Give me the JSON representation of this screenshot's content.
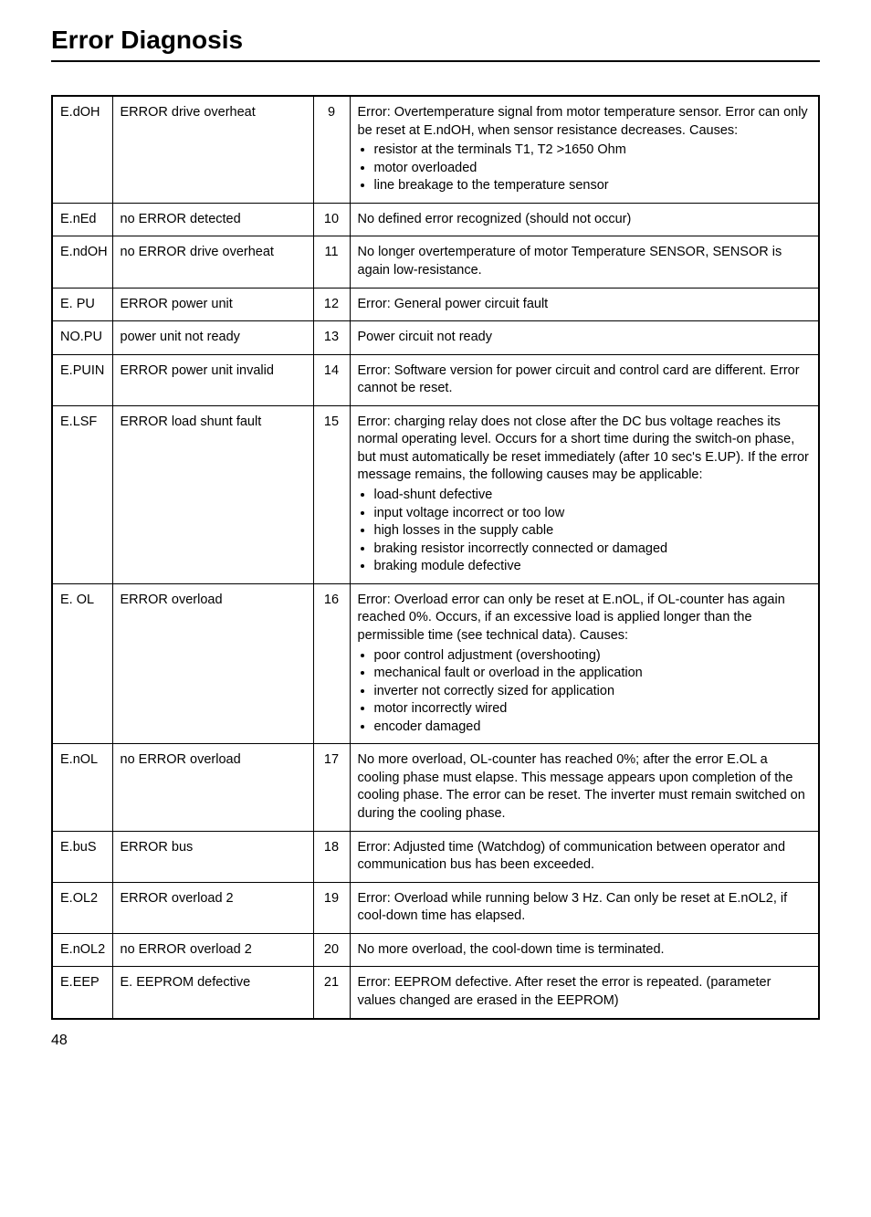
{
  "page": {
    "title": "Error Diagnosis",
    "number": "48"
  },
  "table": {
    "rows": [
      {
        "code": "E.dOH",
        "name": "ERROR drive overheat",
        "num": "9",
        "desc_intro": "Error: Overtemperature signal from motor temperature sensor. Error can only be reset at E.ndOH, when sensor resistance decreases. Causes:",
        "bullets": [
          "resistor at the terminals T1, T2 >1650 Ohm",
          " motor overloaded",
          "line breakage to the temperature sensor"
        ]
      },
      {
        "code": "E.nEd",
        "name": "no ERROR detected",
        "num": "10",
        "desc": "No defined error recognized (should not occur)"
      },
      {
        "code": "E.ndOH",
        "name": "no ERROR drive overheat",
        "num": "11",
        "desc": "No longer overtemperature of motor Temperature SENSOR, SENSOR is again low-resistance."
      },
      {
        "code": "E. PU",
        "name": "ERROR power unit",
        "num": "12",
        "desc": "Error: General power circuit fault"
      },
      {
        "code": "NO.PU",
        "name": "power unit not ready",
        "num": "13",
        "desc": "Power circuit not ready"
      },
      {
        "code": "E.PUIN",
        "name": "ERROR power unit invalid",
        "num": "14",
        "desc": "Error: Software version for power circuit and control card are different. Error cannot be reset."
      },
      {
        "code": "E.LSF",
        "name": "ERROR load shunt fault",
        "num": "15",
        "desc_intro": "Error: charging relay does not close after the DC bus voltage reaches its normal operating level. Occurs for a short time during the switch-on phase, but must automatically be reset immediately (after 10 sec's E.UP). If the error message remains, the following causes may be applicable:",
        "bullets": [
          " load-shunt defective",
          "input voltage incorrect or too low",
          "high losses in the supply cable",
          "braking resistor incorrectly connected or damaged",
          "braking module defective"
        ]
      },
      {
        "code": "E. OL",
        "name": "ERROR overload",
        "num": "16",
        "desc_intro": "Error: Overload error can only be reset at E.nOL, if OL-counter has again reached 0%. Occurs, if an excessive load is applied longer than the permissible time (see technical data). Causes:",
        "bullets": [
          "poor control adjustment (overshooting)",
          "mechanical fault or overload in the application",
          "inverter not correctly sized for application",
          "motor incorrectly wired",
          "encoder damaged"
        ]
      },
      {
        "code": "E.nOL",
        "name": "no ERROR overload",
        "num": "17",
        "desc": "No more overload, OL-counter has reached 0%; after the error E.OL a cooling phase must elapse. This message appears upon completion of the cooling phase. The error can be reset. The inverter must remain switched on during the cooling phase."
      },
      {
        "code": "E.buS",
        "name": "ERROR bus",
        "num": "18",
        "desc": "Error: Adjusted time (Watchdog) of communication between operator and communication bus has been exceeded."
      },
      {
        "code": "E.OL2",
        "name": "ERROR overload 2",
        "num": "19",
        "desc": "Error: Overload while running below 3 Hz. Can only be reset at E.nOL2, if cool-down time has elapsed."
      },
      {
        "code": "E.nOL2",
        "name": "no ERROR overload 2",
        "num": "20",
        "desc": "No more overload, the cool-down time is terminated."
      },
      {
        "code": "E.EEP",
        "name": "E. EEPROM defective",
        "num": "21",
        "desc": "Error: EEPROM defective. After reset the error is repeated. (parameter values changed are erased in the EEPROM)"
      }
    ]
  }
}
